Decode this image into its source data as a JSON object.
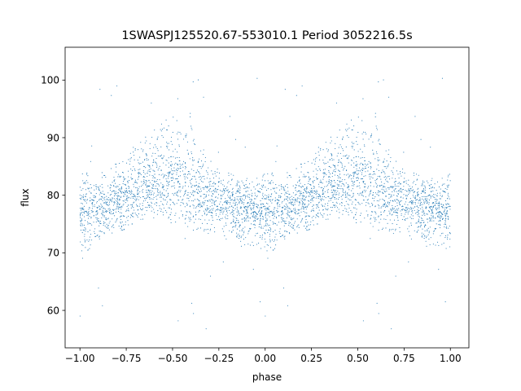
{
  "chart_data": {
    "type": "scatter",
    "title": "1SWASPJ125520.67-553010.1 Period 3052216.5s",
    "xlabel": "phase",
    "ylabel": "flux",
    "xlim": [
      -1.08,
      1.1
    ],
    "ylim": [
      53.5,
      105.7
    ],
    "xticks": [
      -1.0,
      -0.75,
      -0.5,
      -0.25,
      0.0,
      0.25,
      0.5,
      0.75,
      1.0
    ],
    "xtick_labels": [
      "−1.00",
      "−0.75",
      "−0.50",
      "−0.25",
      "0.00",
      "0.25",
      "0.50",
      "0.75",
      "1.00"
    ],
    "yticks": [
      60,
      70,
      80,
      90,
      100
    ],
    "ytick_labels": [
      "60",
      "70",
      "80",
      "90",
      "100"
    ],
    "grid": false,
    "marker_color": "#1f77b4",
    "series": [
      {
        "phase_range": [
          -1.0,
          1.0
        ],
        "repeats_with_period": 1.0,
        "baseline_flux": 78.5,
        "envelope": [
          {
            "phase": 0.0,
            "low": 70,
            "high": 84,
            "mean": 77.5
          },
          {
            "phase": 0.05,
            "low": 70,
            "high": 84,
            "mean": 77.0
          },
          {
            "phase": 0.1,
            "low": 72,
            "high": 84,
            "mean": 78.0
          },
          {
            "phase": 0.15,
            "low": 73,
            "high": 84,
            "mean": 78.5
          },
          {
            "phase": 0.2,
            "low": 73,
            "high": 86,
            "mean": 79.0
          },
          {
            "phase": 0.25,
            "low": 74,
            "high": 87,
            "mean": 79.5
          },
          {
            "phase": 0.3,
            "low": 75,
            "high": 89,
            "mean": 80.5
          },
          {
            "phase": 0.35,
            "low": 76,
            "high": 91,
            "mean": 81.5
          },
          {
            "phase": 0.4,
            "low": 76,
            "high": 90,
            "mean": 82.0
          },
          {
            "phase": 0.45,
            "low": 76,
            "high": 93,
            "mean": 82.5
          },
          {
            "phase": 0.5,
            "low": 75,
            "high": 95,
            "mean": 83.0
          },
          {
            "phase": 0.55,
            "low": 75,
            "high": 91,
            "mean": 81.5
          },
          {
            "phase": 0.6,
            "low": 74,
            "high": 92,
            "mean": 81.0
          },
          {
            "phase": 0.65,
            "low": 73,
            "high": 89,
            "mean": 80.0
          },
          {
            "phase": 0.7,
            "low": 73,
            "high": 87,
            "mean": 79.5
          },
          {
            "phase": 0.75,
            "low": 73,
            "high": 85,
            "mean": 79.0
          },
          {
            "phase": 0.8,
            "low": 72,
            "high": 84,
            "mean": 78.5
          },
          {
            "phase": 0.85,
            "low": 71,
            "high": 84,
            "mean": 78.0
          },
          {
            "phase": 0.9,
            "low": 71,
            "high": 83,
            "mean": 78.0
          },
          {
            "phase": 0.95,
            "low": 71,
            "high": 82,
            "mean": 77.5
          },
          {
            "phase": 1.0,
            "low": 70,
            "high": 84,
            "mean": 77.5
          }
        ],
        "outlier_range": [
          56,
          102
        ]
      }
    ]
  }
}
